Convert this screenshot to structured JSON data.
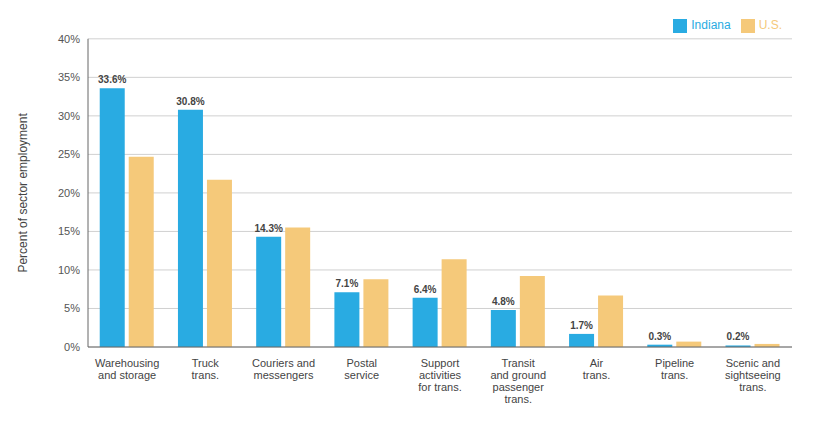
{
  "chart_data": {
    "type": "bar",
    "categories": [
      "Warehousing\nand storage",
      "Truck\ntrans.",
      "Couriers and\nmessengers",
      "Postal\nservice",
      "Support\nactivities\nfor trans.",
      "Transit\nand ground\npassenger\ntrans.",
      "Air\ntrans.",
      "Pipeline\ntrans.",
      "Scenic and\nsightseeing\ntrans."
    ],
    "series": [
      {
        "name": "Indiana",
        "color": "#29ABE2",
        "values": [
          33.6,
          30.8,
          14.3,
          7.1,
          6.4,
          4.8,
          1.7,
          0.3,
          0.2
        ],
        "data_labels": true,
        "value_labels": [
          "33.6%",
          "30.8%",
          "14.3%",
          "7.1%",
          "6.4%",
          "4.8%",
          "1.7%",
          "0.3%",
          "0.2%"
        ]
      },
      {
        "name": "U.S.",
        "color": "#F5C97A",
        "values": [
          24.7,
          21.7,
          15.5,
          8.8,
          11.4,
          9.2,
          6.7,
          0.7,
          0.4
        ]
      }
    ],
    "y_label": "Percent of sector employment",
    "ylim": [
      0,
      40
    ],
    "yticks": [
      {
        "value": 0,
        "label": "0%"
      },
      {
        "value": 5,
        "label": "5%"
      },
      {
        "value": 10,
        "label": "10%"
      },
      {
        "value": 15,
        "label": "15%"
      },
      {
        "value": 20,
        "label": "20%"
      },
      {
        "value": 25,
        "label": "25%"
      },
      {
        "value": 30,
        "label": "30%"
      },
      {
        "value": 35,
        "label": "35%"
      },
      {
        "value": 40,
        "label": "40%"
      }
    ],
    "grid": true,
    "legend": "upper right"
  }
}
